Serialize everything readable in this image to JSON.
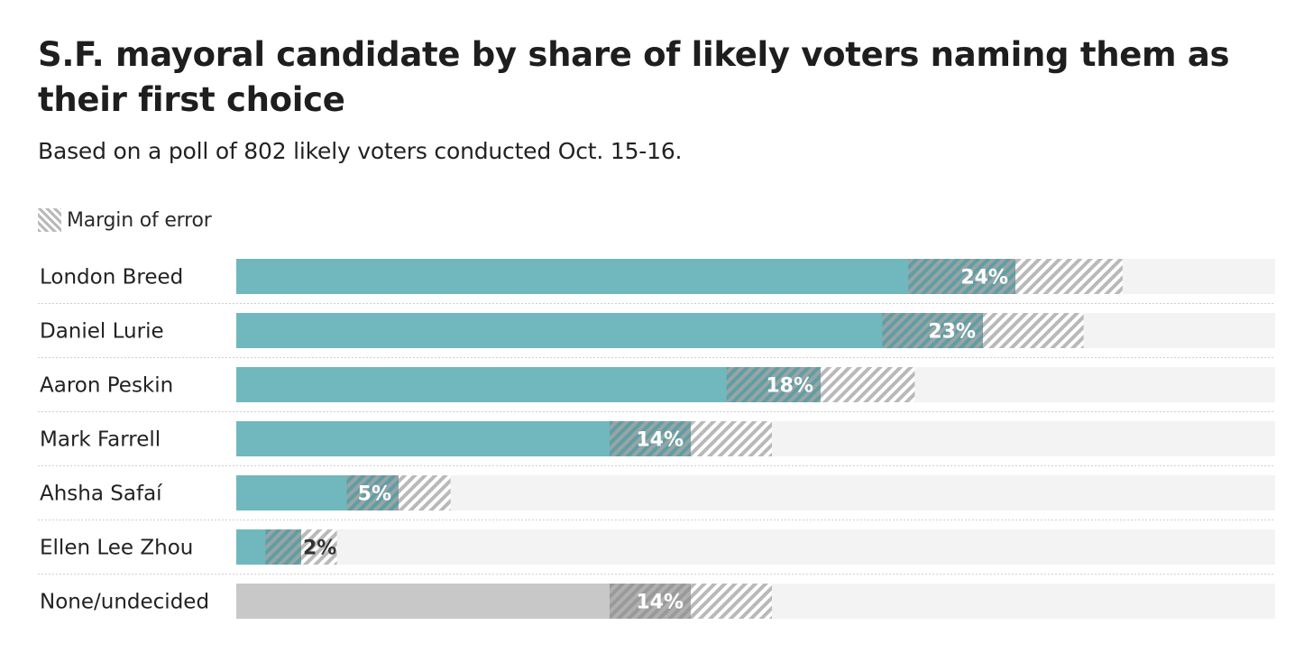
{
  "title": "S.F. mayoral candidate by share of likely voters naming them as their first choice",
  "subtitle": "Based on a poll of 802 likely voters conducted Oct. 15-16.",
  "legend": {
    "margin_of_error_label": "Margin of error"
  },
  "colors": {
    "candidate_bar": "#70b8be",
    "undecided_bar": "#c8c8c8",
    "track": "#f3f3f3",
    "hatch": "#b9b9b9",
    "label_on_bar": "#ffffff",
    "label_outside": "#333333"
  },
  "chart_data": {
    "type": "bar",
    "orientation": "horizontal",
    "categories": [
      "London Breed",
      "Daniel Lurie",
      "Aaron Peskin",
      "Mark Farrell",
      "Ahsha Safaí",
      "Ellen Lee Zhou",
      "None/undecided"
    ],
    "values": [
      24,
      23,
      18,
      14,
      5,
      2,
      14
    ],
    "value_labels": [
      "24%",
      "23%",
      "18%",
      "14%",
      "5%",
      "2%",
      "14%"
    ],
    "margin_of_error": [
      3.3,
      3.1,
      2.9,
      2.5,
      1.6,
      1.1,
      2.5
    ],
    "xlim": [
      0,
      32
    ],
    "grid": false,
    "legend_position": "top-left"
  }
}
